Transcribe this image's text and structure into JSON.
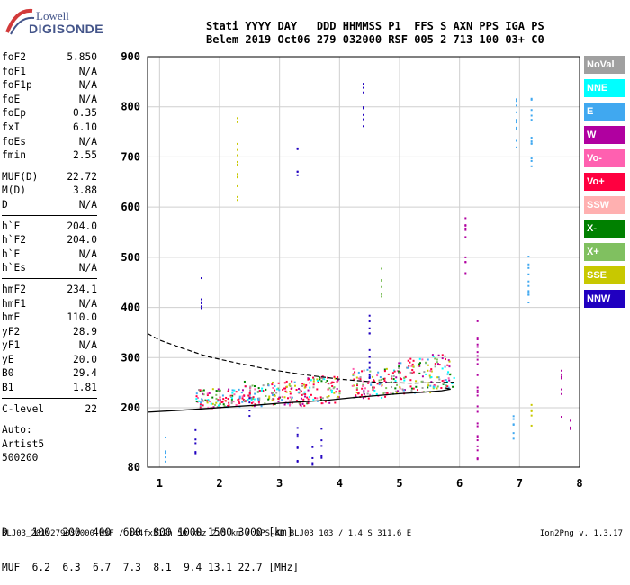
{
  "logo": {
    "line1": "Lowell",
    "line2": "DIGISONDE"
  },
  "header": {
    "line1": "Stati YYYY DAY   DDD HHMMSS P1  FFS S AXN PPS IGA PS",
    "line2": "Belem 2019 Oct06 279 032000 RSF 005 2 713 100 03+ C0"
  },
  "params": {
    "group1": [
      {
        "name": "foF2",
        "value": "5.850"
      },
      {
        "name": "foF1",
        "value": "N/A"
      },
      {
        "name": "foF1p",
        "value": "N/A"
      },
      {
        "name": "foE",
        "value": "N/A"
      },
      {
        "name": "foEp",
        "value": "0.35"
      },
      {
        "name": "fxI",
        "value": "6.10"
      },
      {
        "name": "foEs",
        "value": "N/A"
      },
      {
        "name": "fmin",
        "value": "2.55"
      }
    ],
    "group2": [
      {
        "name": "MUF(D)",
        "value": "22.72"
      },
      {
        "name": "M(D)",
        "value": "3.88"
      },
      {
        "name": "D",
        "value": "N/A"
      }
    ],
    "group3": [
      {
        "name": "h`F",
        "value": "204.0"
      },
      {
        "name": "h`F2",
        "value": "204.0"
      },
      {
        "name": "h`E",
        "value": "N/A"
      },
      {
        "name": "h`Es",
        "value": "N/A"
      }
    ],
    "group4": [
      {
        "name": "hmF2",
        "value": "234.1"
      },
      {
        "name": "hmF1",
        "value": "N/A"
      },
      {
        "name": "hmE",
        "value": "110.0"
      },
      {
        "name": "yF2",
        "value": "28.9"
      },
      {
        "name": "yF1",
        "value": "N/A"
      },
      {
        "name": "yE",
        "value": "20.0"
      },
      {
        "name": "B0",
        "value": "29.4"
      },
      {
        "name": "B1",
        "value": "1.81"
      }
    ],
    "group5": [
      {
        "name": "C-level",
        "value": "22"
      }
    ],
    "group6": [
      "Auto:",
      "Artist5",
      "500200"
    ]
  },
  "legend": [
    {
      "label": "NoVal",
      "color": "#a0a0a0"
    },
    {
      "label": "NNE",
      "color": "#00ffff"
    },
    {
      "label": "E",
      "color": "#40a8f0"
    },
    {
      "label": "W",
      "color": "#b000a0"
    },
    {
      "label": "Vo-",
      "color": "#ff60b0"
    },
    {
      "label": "Vo+",
      "color": "#ff0040"
    },
    {
      "label": "SSW",
      "color": "#ffb0b0"
    },
    {
      "label": "X-",
      "color": "#008000"
    },
    {
      "label": "X+",
      "color": "#80c060"
    },
    {
      "label": "SSE",
      "color": "#c8c800"
    },
    {
      "label": "NNW",
      "color": "#2000c0"
    }
  ],
  "muf_table": {
    "line1": "D    100  200  400  600  800 1000 1500 3000 [km]",
    "line2": "MUF  6.2  6.3  6.7  7.3  8.1  9.4 13.1 22.7 [MHz]"
  },
  "footer": {
    "left": "BLJ03_2019279032000.RSF / 144fx512h 50 kHz 2.5 km / DPS-4D BLJ03 103 / 1.4 S 311.6 E",
    "right": "Ion2Png v. 1.3.17"
  },
  "chart_data": {
    "type": "scatter",
    "xlim": [
      0.8,
      8.0
    ],
    "ylim": [
      80,
      900
    ],
    "xticks": [
      "1",
      "2",
      "3",
      "4",
      "5",
      "6",
      "7",
      "8"
    ],
    "yticks": [
      "80",
      "200",
      "300",
      "400",
      "500",
      "600",
      "700",
      "800",
      "900"
    ],
    "grid": true,
    "solid_trace": {
      "x": [
        0.8,
        1.5,
        2.2,
        2.6,
        3.0,
        3.4,
        3.8,
        4.2,
        4.6,
        5.0,
        5.4,
        5.7,
        5.85,
        5.75
      ],
      "y": [
        191,
        196,
        202,
        205,
        209,
        212,
        215,
        220,
        224,
        228,
        231,
        234,
        237,
        240
      ]
    },
    "dashed_trace": {
      "x": [
        0.8,
        1.0,
        1.4,
        1.8,
        2.3,
        2.8,
        3.4,
        4.0,
        4.6,
        5.2,
        5.6,
        5.9
      ],
      "y": [
        348,
        335,
        318,
        302,
        289,
        277,
        266,
        257,
        251,
        249,
        250,
        251
      ]
    },
    "echo_columns": [
      {
        "x": 1.1,
        "y0": 88,
        "y1": 145,
        "color": "#40a8f0"
      },
      {
        "x": 1.6,
        "y0": 100,
        "y1": 160,
        "color": "#2000c0"
      },
      {
        "x": 1.7,
        "y0": 400,
        "y1": 480,
        "color": "#2000c0"
      },
      {
        "x": 2.3,
        "y0": 615,
        "y1": 780,
        "color": "#c8c800"
      },
      {
        "x": 2.5,
        "y0": 180,
        "y1": 225,
        "color": "#2000c0"
      },
      {
        "x": 3.3,
        "y0": 90,
        "y1": 170,
        "color": "#2000c0"
      },
      {
        "x": 3.3,
        "y0": 655,
        "y1": 720,
        "color": "#2000c0"
      },
      {
        "x": 3.55,
        "y0": 80,
        "y1": 130,
        "color": "#2000c0"
      },
      {
        "x": 3.7,
        "y0": 100,
        "y1": 160,
        "color": "#2000c0"
      },
      {
        "x": 4.4,
        "y0": 760,
        "y1": 860,
        "color": "#2000c0"
      },
      {
        "x": 4.5,
        "y0": 260,
        "y1": 410,
        "color": "#2000c0"
      },
      {
        "x": 4.7,
        "y0": 400,
        "y1": 480,
        "color": "#80c060"
      },
      {
        "x": 6.1,
        "y0": 470,
        "y1": 590,
        "color": "#b000a0"
      },
      {
        "x": 6.3,
        "y0": 80,
        "y1": 380,
        "color": "#b000a0"
      },
      {
        "x": 6.9,
        "y0": 130,
        "y1": 200,
        "color": "#40a8f0"
      },
      {
        "x": 6.95,
        "y0": 690,
        "y1": 820,
        "color": "#40a8f0"
      },
      {
        "x": 7.15,
        "y0": 380,
        "y1": 510,
        "color": "#40a8f0"
      },
      {
        "x": 7.2,
        "y0": 160,
        "y1": 220,
        "color": "#c8c800"
      },
      {
        "x": 7.2,
        "y0": 680,
        "y1": 820,
        "color": "#40a8f0"
      },
      {
        "x": 7.7,
        "y0": 180,
        "y1": 280,
        "color": "#b000a0"
      },
      {
        "x": 7.85,
        "y0": 150,
        "y1": 200,
        "color": "#b000a0"
      }
    ],
    "echo_clusters": [
      {
        "x0": 1.6,
        "x1": 2.4,
        "y0": 200,
        "y1": 240
      },
      {
        "x0": 2.4,
        "x1": 3.4,
        "y0": 205,
        "y1": 255
      },
      {
        "x0": 3.4,
        "x1": 4.0,
        "y0": 210,
        "y1": 265
      },
      {
        "x0": 4.2,
        "x1": 4.9,
        "y0": 220,
        "y1": 280
      },
      {
        "x0": 4.9,
        "x1": 5.5,
        "y0": 230,
        "y1": 300
      },
      {
        "x0": 5.5,
        "x1": 5.9,
        "y0": 240,
        "y1": 310
      }
    ]
  }
}
